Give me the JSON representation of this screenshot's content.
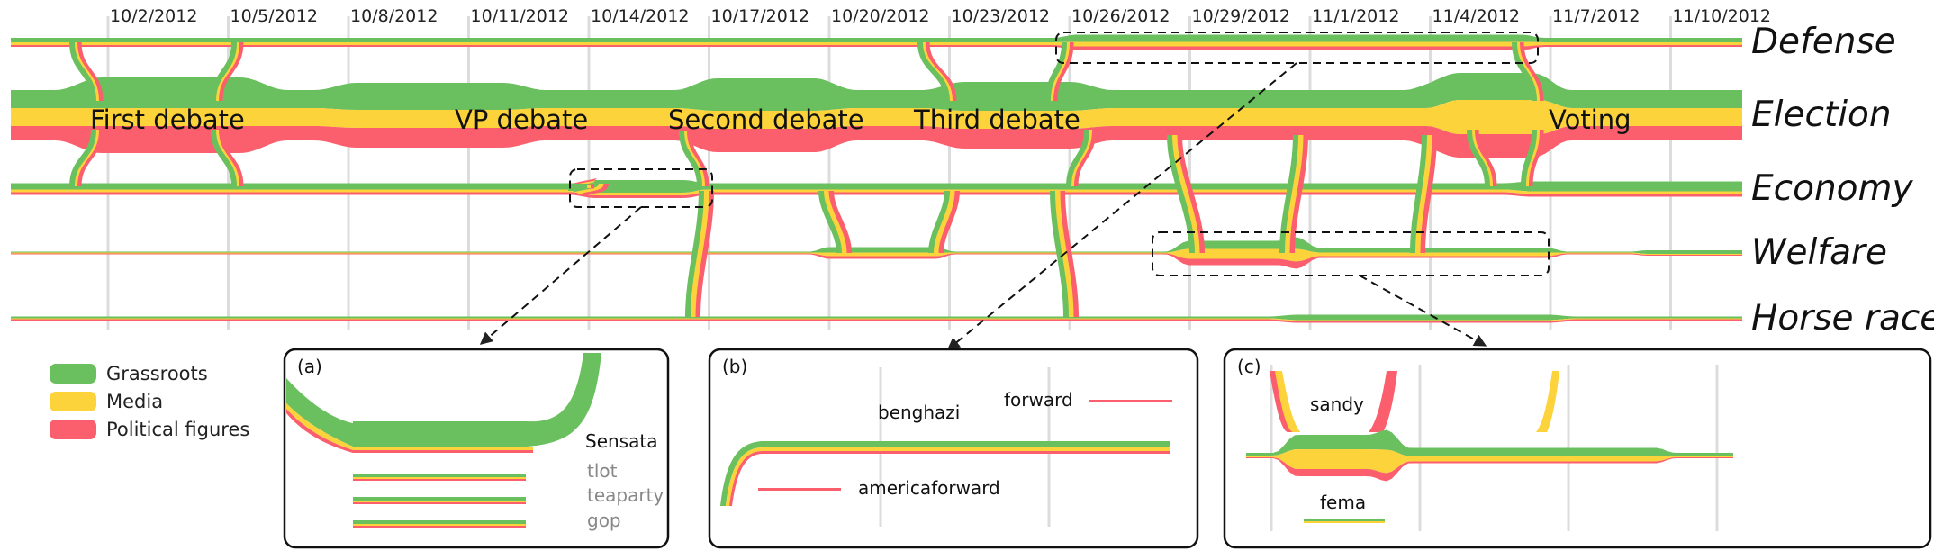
{
  "chart_data": {
    "type": "area",
    "dates": [
      "10/2/2012",
      "10/5/2012",
      "10/8/2012",
      "10/11/2012",
      "10/14/2012",
      "10/17/2012",
      "10/20/2012",
      "10/23/2012",
      "10/26/2012",
      "10/29/2012",
      "11/1/2012",
      "11/4/2012",
      "11/7/2012",
      "11/10/2012"
    ],
    "topics": [
      "Defense",
      "Election",
      "Economy",
      "Welfare",
      "Horse race"
    ],
    "events": [
      "First debate",
      "VP debate",
      "Second debate",
      "Third debate",
      "Voting"
    ],
    "legend": [
      {
        "name": "Grassroots",
        "color": "#6abf5e"
      },
      {
        "name": "Media",
        "color": "#fdd33c"
      },
      {
        "name": "Political figures",
        "color": "#fb5f6d"
      }
    ],
    "panels": [
      {
        "tag": "(a)",
        "keywords": [
          "Sensata",
          "tlot",
          "teaparty",
          "gop"
        ]
      },
      {
        "tag": "(b)",
        "keywords": [
          "benghazi",
          "forward",
          "americaforward"
        ]
      },
      {
        "tag": "(c)",
        "keywords": [
          "sandy",
          "fema"
        ]
      }
    ]
  }
}
